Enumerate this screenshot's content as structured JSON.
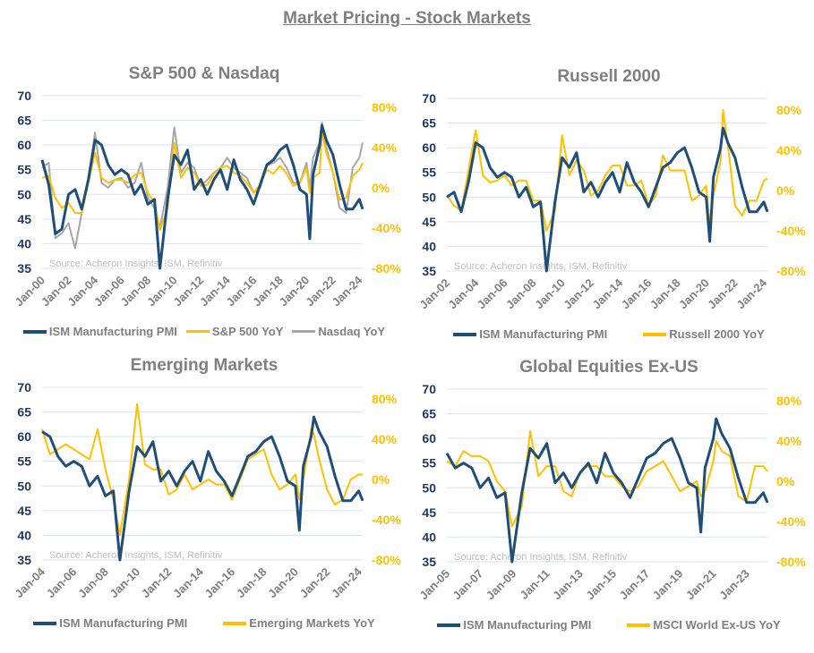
{
  "page_title": "Market Pricing - Stock Markets",
  "source_note": "Source: Acheron Insights, ISM, Refinitiv",
  "colors": {
    "ism": "#1F4E79",
    "yoy": "#FFC000",
    "nasdaq": "#A6A6A6",
    "left_axis": "#203864",
    "grid": "#D6E3F2",
    "title": "#7F7F7F"
  },
  "chart_data": [
    {
      "type": "line",
      "title": "S&P 500 & Nasdaq",
      "left_ticks": [
        35,
        40,
        45,
        50,
        55,
        60,
        65,
        70
      ],
      "right_ticks": [
        "-80%",
        "-40%",
        "0%",
        "40%",
        "80%"
      ],
      "ylim_left": [
        35,
        70
      ],
      "ylim_right": [
        -80,
        80
      ],
      "x_ticks": [
        "Jan-00",
        "Jan-02",
        "Jan-04",
        "Jan-06",
        "Jan-08",
        "Jan-10",
        "Jan-12",
        "Jan-14",
        "Jan-16",
        "Jan-18",
        "Jan-20",
        "Jan-22",
        "Jan-24"
      ],
      "x_range": [
        "2000-01",
        "2024-04"
      ],
      "grid": true,
      "legend": "bottom",
      "x": [
        "2000-01",
        "2000-07",
        "2001-01",
        "2001-07",
        "2002-01",
        "2002-07",
        "2003-01",
        "2003-07",
        "2004-01",
        "2004-07",
        "2005-01",
        "2005-07",
        "2006-01",
        "2006-07",
        "2007-01",
        "2007-07",
        "2008-01",
        "2008-07",
        "2008-12",
        "2009-07",
        "2010-01",
        "2010-07",
        "2011-01",
        "2011-07",
        "2012-01",
        "2012-07",
        "2013-01",
        "2013-07",
        "2014-01",
        "2014-07",
        "2015-01",
        "2015-07",
        "2016-01",
        "2016-07",
        "2017-01",
        "2017-07",
        "2018-01",
        "2018-07",
        "2019-01",
        "2019-07",
        "2020-01",
        "2020-04",
        "2020-07",
        "2021-01",
        "2021-03",
        "2021-07",
        "2022-01",
        "2022-07",
        "2023-01",
        "2023-07",
        "2024-01",
        "2024-04"
      ],
      "series": [
        {
          "name": "ISM Manufacturing PMI",
          "axis": "left",
          "color": "#1F4E79",
          "values": [
            57,
            52,
            42,
            43,
            50,
            51,
            47,
            53,
            61,
            60,
            56,
            54,
            55,
            54,
            50,
            52,
            48,
            49,
            35,
            49,
            58,
            56,
            59,
            51,
            53,
            50,
            53,
            55,
            51,
            57,
            53,
            51,
            48,
            52,
            56,
            57,
            59,
            60,
            56,
            51,
            50,
            41,
            54,
            60,
            64,
            61,
            58,
            52,
            47,
            47,
            49,
            47
          ]
        },
        {
          "name": "S&P 500 YoY",
          "axis": "right",
          "color": "#FFC000",
          "values": [
            10,
            12,
            -10,
            -20,
            -15,
            -25,
            -25,
            5,
            35,
            10,
            5,
            8,
            8,
            5,
            13,
            15,
            -5,
            -15,
            -42,
            -20,
            45,
            10,
            20,
            15,
            2,
            3,
            14,
            20,
            22,
            15,
            12,
            5,
            -5,
            3,
            18,
            14,
            22,
            14,
            2,
            5,
            20,
            -5,
            10,
            15,
            55,
            35,
            15,
            -12,
            -10,
            12,
            18,
            25
          ]
        },
        {
          "name": "Nasdaq YoY",
          "axis": "right",
          "color": "#A6A6A6",
          "values": [
            20,
            25,
            -50,
            -45,
            -35,
            -60,
            -25,
            10,
            55,
            5,
            0,
            8,
            10,
            0,
            5,
            25,
            -10,
            -20,
            -40,
            0,
            60,
            15,
            25,
            20,
            2,
            8,
            15,
            20,
            30,
            20,
            15,
            10,
            -5,
            0,
            22,
            25,
            30,
            20,
            5,
            5,
            25,
            0,
            30,
            45,
            65,
            40,
            15,
            -20,
            -25,
            20,
            30,
            45
          ]
        }
      ]
    },
    {
      "type": "line",
      "title": "Russell 2000",
      "left_ticks": [
        35,
        40,
        45,
        50,
        55,
        60,
        65,
        70
      ],
      "right_ticks": [
        "-80%",
        "-40%",
        "0%",
        "40%",
        "80%"
      ],
      "ylim_left": [
        35,
        70
      ],
      "ylim_right": [
        -80,
        80
      ],
      "x_ticks": [
        "Jan-02",
        "Jan-04",
        "Jan-06",
        "Jan-08",
        "Jan-10",
        "Jan-12",
        "Jan-14",
        "Jan-16",
        "Jan-18",
        "Jan-20",
        "Jan-22",
        "Jan-24"
      ],
      "x_range": [
        "2002-01",
        "2024-04"
      ],
      "grid": true,
      "legend": "bottom",
      "x": [
        "2002-01",
        "2002-07",
        "2003-01",
        "2003-07",
        "2004-01",
        "2004-07",
        "2005-01",
        "2005-07",
        "2006-01",
        "2006-07",
        "2007-01",
        "2007-07",
        "2008-01",
        "2008-07",
        "2008-12",
        "2009-07",
        "2010-01",
        "2010-07",
        "2011-01",
        "2011-07",
        "2012-01",
        "2012-07",
        "2013-01",
        "2013-07",
        "2014-01",
        "2014-07",
        "2015-01",
        "2015-07",
        "2016-01",
        "2016-07",
        "2017-01",
        "2017-07",
        "2018-01",
        "2018-07",
        "2019-01",
        "2019-07",
        "2020-01",
        "2020-04",
        "2020-07",
        "2021-01",
        "2021-03",
        "2021-07",
        "2022-01",
        "2022-07",
        "2023-01",
        "2023-07",
        "2024-01",
        "2024-04"
      ],
      "series": [
        {
          "name": "ISM Manufacturing PMI",
          "axis": "left",
          "color": "#1F4E79",
          "values": [
            50,
            51,
            47,
            53,
            61,
            60,
            56,
            54,
            55,
            54,
            50,
            52,
            48,
            49,
            35,
            49,
            58,
            56,
            59,
            51,
            53,
            50,
            53,
            55,
            51,
            57,
            53,
            51,
            48,
            52,
            56,
            57,
            59,
            60,
            56,
            51,
            50,
            41,
            54,
            60,
            64,
            61,
            58,
            52,
            47,
            47,
            49,
            47
          ]
        },
        {
          "name": "Russell 2000 YoY",
          "axis": "right",
          "color": "#FFC000",
          "values": [
            -5,
            -15,
            -20,
            20,
            60,
            15,
            8,
            10,
            15,
            5,
            10,
            10,
            -10,
            -10,
            -40,
            -20,
            55,
            15,
            30,
            20,
            -5,
            0,
            15,
            25,
            25,
            5,
            5,
            10,
            -15,
            -5,
            35,
            20,
            20,
            20,
            -10,
            -5,
            5,
            -35,
            -5,
            30,
            80,
            45,
            -15,
            -25,
            -10,
            -10,
            10,
            12
          ]
        }
      ]
    },
    {
      "type": "line",
      "title": "Emerging Markets",
      "left_ticks": [
        35,
        40,
        45,
        50,
        55,
        60,
        65,
        70
      ],
      "right_ticks": [
        "-80%",
        "-40%",
        "0%",
        "40%",
        "80%"
      ],
      "ylim_left": [
        35,
        70
      ],
      "ylim_right": [
        -80,
        80
      ],
      "x_ticks": [
        "Jan-04",
        "Jan-06",
        "Jan-08",
        "Jan-10",
        "Jan-12",
        "Jan-14",
        "Jan-16",
        "Jan-18",
        "Jan-20",
        "Jan-22",
        "Jan-24"
      ],
      "x_range": [
        "2004-01",
        "2024-04"
      ],
      "grid": true,
      "legend": "bottom",
      "x": [
        "2004-01",
        "2004-07",
        "2005-01",
        "2005-07",
        "2006-01",
        "2006-07",
        "2007-01",
        "2007-07",
        "2008-01",
        "2008-07",
        "2008-12",
        "2009-07",
        "2010-01",
        "2010-07",
        "2011-01",
        "2011-07",
        "2012-01",
        "2012-07",
        "2013-01",
        "2013-07",
        "2014-01",
        "2014-07",
        "2015-01",
        "2015-07",
        "2016-01",
        "2016-07",
        "2017-01",
        "2017-07",
        "2018-01",
        "2018-07",
        "2019-01",
        "2019-07",
        "2020-01",
        "2020-04",
        "2020-07",
        "2021-01",
        "2021-03",
        "2021-07",
        "2022-01",
        "2022-07",
        "2023-01",
        "2023-07",
        "2024-01",
        "2024-04"
      ],
      "series": [
        {
          "name": "ISM Manufacturing PMI",
          "axis": "left",
          "color": "#1F4E79",
          "values": [
            61,
            60,
            56,
            54,
            55,
            54,
            50,
            52,
            48,
            49,
            35,
            49,
            58,
            56,
            59,
            51,
            53,
            50,
            53,
            55,
            51,
            57,
            53,
            51,
            48,
            52,
            56,
            57,
            59,
            60,
            56,
            51,
            50,
            41,
            54,
            60,
            64,
            61,
            58,
            52,
            47,
            47,
            49,
            47
          ]
        },
        {
          "name": "Emerging Markets YoY",
          "axis": "right",
          "color": "#FFC000",
          "values": [
            50,
            25,
            30,
            35,
            30,
            25,
            20,
            50,
            10,
            -20,
            -55,
            0,
            75,
            15,
            10,
            10,
            -15,
            -10,
            5,
            -10,
            -5,
            0,
            -5,
            -5,
            -20,
            0,
            20,
            25,
            30,
            5,
            -10,
            -5,
            5,
            -20,
            0,
            50,
            45,
            20,
            -10,
            -25,
            -20,
            0,
            5,
            5
          ]
        }
      ]
    },
    {
      "type": "line",
      "title": "Global Equities Ex-US",
      "left_ticks": [
        35,
        40,
        45,
        50,
        55,
        60,
        65,
        70
      ],
      "right_ticks": [
        "-80%",
        "-40%",
        "0%",
        "40%",
        "80%"
      ],
      "ylim_left": [
        35,
        70
      ],
      "ylim_right": [
        -80,
        80
      ],
      "x_ticks": [
        "Jan-05",
        "Jan-07",
        "Jan-09",
        "Jan-11",
        "Jan-13",
        "Jan-15",
        "Jan-17",
        "Jan-19",
        "Jan-21",
        "Jan-23"
      ],
      "x_range": [
        "2005-01",
        "2024-04"
      ],
      "grid": true,
      "legend": "bottom",
      "x": [
        "2005-01",
        "2005-07",
        "2006-01",
        "2006-07",
        "2007-01",
        "2007-07",
        "2008-01",
        "2008-07",
        "2008-12",
        "2009-07",
        "2010-01",
        "2010-07",
        "2011-01",
        "2011-07",
        "2012-01",
        "2012-07",
        "2013-01",
        "2013-07",
        "2014-01",
        "2014-07",
        "2015-01",
        "2015-07",
        "2016-01",
        "2016-07",
        "2017-01",
        "2017-07",
        "2018-01",
        "2018-07",
        "2019-01",
        "2019-07",
        "2020-01",
        "2020-04",
        "2020-07",
        "2021-01",
        "2021-03",
        "2021-07",
        "2022-01",
        "2022-07",
        "2023-01",
        "2023-07",
        "2024-01",
        "2024-04"
      ],
      "series": [
        {
          "name": "ISM Manufacturing PMI",
          "axis": "left",
          "color": "#1F4E79",
          "values": [
            57,
            54,
            55,
            54,
            50,
            52,
            48,
            49,
            35,
            49,
            58,
            56,
            59,
            51,
            53,
            50,
            53,
            55,
            51,
            57,
            53,
            51,
            48,
            52,
            56,
            57,
            59,
            60,
            56,
            51,
            50,
            41,
            54,
            60,
            64,
            61,
            58,
            52,
            47,
            47,
            49,
            47
          ]
        },
        {
          "name": "MSCI World Ex-US YoY",
          "axis": "right",
          "color": "#FFC000",
          "values": [
            20,
            15,
            30,
            25,
            25,
            20,
            0,
            -10,
            -45,
            -25,
            50,
            5,
            15,
            15,
            -10,
            -15,
            10,
            15,
            15,
            5,
            5,
            -5,
            -10,
            -5,
            10,
            15,
            20,
            5,
            -10,
            -5,
            0,
            -15,
            -10,
            20,
            40,
            30,
            25,
            -15,
            -20,
            15,
            15,
            10
          ]
        }
      ]
    }
  ]
}
